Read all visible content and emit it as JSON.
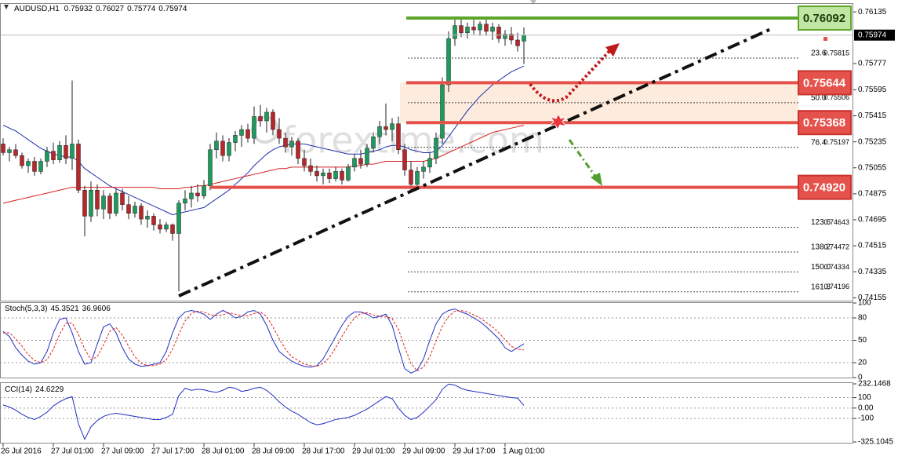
{
  "chart_data": [
    {
      "type": "candlestick",
      "symbol": "AUDUSD,H1",
      "watermark": "forextime.com",
      "categories": [
        "26 Jul 2016",
        null,
        null,
        null,
        null,
        null,
        null,
        null,
        "27 Jul 01:00",
        null,
        null,
        null,
        null,
        null,
        null,
        null,
        "27 Jul 09:00",
        null,
        null,
        null,
        null,
        null,
        null,
        null,
        "27 Jul 17:00",
        null,
        null,
        null,
        null,
        null,
        null,
        null,
        "28 Jul 01:00",
        null,
        null,
        null,
        null,
        null,
        null,
        null,
        "28 Jul 09:00",
        null,
        null,
        null,
        null,
        null,
        null,
        null,
        "28 Jul 17:00",
        null,
        null,
        null,
        null,
        null,
        null,
        null,
        "29 Jul 01:00",
        null,
        null,
        null,
        null,
        null,
        null,
        null,
        "29 Jul 09:00",
        null,
        null,
        null,
        null,
        null,
        null,
        null,
        "29 Jul 17:00",
        null,
        null,
        null,
        null,
        null,
        null,
        null,
        "1 Aug 01:00",
        null,
        null,
        null
      ],
      "candles": [
        [
          0.7522,
          0.7526,
          0.7514,
          0.7516
        ],
        [
          0.7516,
          0.752,
          0.751,
          0.7518
        ],
        [
          0.7518,
          0.7522,
          0.7512,
          0.7514
        ],
        [
          0.7514,
          0.7516,
          0.7505,
          0.7507
        ],
        [
          0.7507,
          0.7512,
          0.7502,
          0.751
        ],
        [
          0.751,
          0.7513,
          0.75,
          0.7503
        ],
        [
          0.7503,
          0.7512,
          0.7501,
          0.751
        ],
        [
          0.751,
          0.752,
          0.7506,
          0.7517
        ],
        [
          0.7517,
          0.7523,
          0.7508,
          0.7511
        ],
        [
          0.7511,
          0.7524,
          0.7509,
          0.7521
        ],
        [
          0.7521,
          0.7528,
          0.7508,
          0.7512
        ],
        [
          0.7512,
          0.7566,
          0.7504,
          0.7522
        ],
        [
          0.7522,
          0.7525,
          0.7488,
          0.749
        ],
        [
          0.749,
          0.7493,
          0.7458,
          0.7472
        ],
        [
          0.7472,
          0.7496,
          0.7468,
          0.749
        ],
        [
          0.749,
          0.7494,
          0.7472,
          0.7477
        ],
        [
          0.7477,
          0.749,
          0.747,
          0.7486
        ],
        [
          0.7486,
          0.7488,
          0.747,
          0.7474
        ],
        [
          0.7474,
          0.7491,
          0.7472,
          0.7488
        ],
        [
          0.7488,
          0.7491,
          0.7476,
          0.748
        ],
        [
          0.748,
          0.7486,
          0.747,
          0.7474
        ],
        [
          0.7474,
          0.7482,
          0.7471,
          0.7479
        ],
        [
          0.7479,
          0.7481,
          0.7466,
          0.747
        ],
        [
          0.747,
          0.7476,
          0.7464,
          0.7472
        ],
        [
          0.7472,
          0.7474,
          0.7462,
          0.7466
        ],
        [
          0.7466,
          0.747,
          0.746,
          0.7463
        ],
        [
          0.7463,
          0.7468,
          0.7461,
          0.7466
        ],
        [
          0.7466,
          0.7467,
          0.7455,
          0.746
        ],
        [
          0.746,
          0.7483,
          0.742,
          0.7481
        ],
        [
          0.7481,
          0.749,
          0.7476,
          0.7484
        ],
        [
          0.7484,
          0.7493,
          0.7478,
          0.7488
        ],
        [
          0.7488,
          0.7494,
          0.7482,
          0.7486
        ],
        [
          0.7486,
          0.7497,
          0.7484,
          0.7493
        ],
        [
          0.7493,
          0.7522,
          0.749,
          0.7518
        ],
        [
          0.7518,
          0.753,
          0.7512,
          0.7524
        ],
        [
          0.7524,
          0.7528,
          0.751,
          0.7514
        ],
        [
          0.7514,
          0.7526,
          0.751,
          0.7523
        ],
        [
          0.7523,
          0.7531,
          0.7517,
          0.7528
        ],
        [
          0.7528,
          0.7535,
          0.752,
          0.7532
        ],
        [
          0.7532,
          0.7536,
          0.7523,
          0.7526
        ],
        [
          0.7526,
          0.7548,
          0.7522,
          0.7541
        ],
        [
          0.7541,
          0.7549,
          0.7534,
          0.7538
        ],
        [
          0.7538,
          0.7547,
          0.753,
          0.7544
        ],
        [
          0.7544,
          0.7546,
          0.7528,
          0.7532
        ],
        [
          0.7532,
          0.754,
          0.7522,
          0.7526
        ],
        [
          0.7526,
          0.753,
          0.7516,
          0.752
        ],
        [
          0.752,
          0.7527,
          0.7514,
          0.7524
        ],
        [
          0.7524,
          0.7526,
          0.7508,
          0.7512
        ],
        [
          0.7512,
          0.7518,
          0.7503,
          0.7507
        ],
        [
          0.7507,
          0.7512,
          0.75,
          0.7503
        ],
        [
          0.7503,
          0.7507,
          0.7496,
          0.75
        ],
        [
          0.75,
          0.7505,
          0.7494,
          0.7502
        ],
        [
          0.7502,
          0.7505,
          0.7495,
          0.7498
        ],
        [
          0.7498,
          0.7506,
          0.7496,
          0.7503
        ],
        [
          0.7503,
          0.7505,
          0.7494,
          0.7497
        ],
        [
          0.7497,
          0.7508,
          0.7496,
          0.7506
        ],
        [
          0.7506,
          0.7515,
          0.7503,
          0.7512
        ],
        [
          0.7512,
          0.7518,
          0.7505,
          0.7508
        ],
        [
          0.7508,
          0.7522,
          0.7506,
          0.7519
        ],
        [
          0.7519,
          0.753,
          0.7516,
          0.7527
        ],
        [
          0.7527,
          0.7538,
          0.7522,
          0.7534
        ],
        [
          0.7534,
          0.755,
          0.7528,
          0.7532
        ],
        [
          0.7532,
          0.754,
          0.7524,
          0.7536
        ],
        [
          0.7536,
          0.7541,
          0.7515,
          0.7518
        ],
        [
          0.7518,
          0.7522,
          0.75,
          0.7504
        ],
        [
          0.7504,
          0.751,
          0.749,
          0.7494
        ],
        [
          0.7494,
          0.7506,
          0.7491,
          0.7503
        ],
        [
          0.7503,
          0.751,
          0.7498,
          0.7506
        ],
        [
          0.7506,
          0.7516,
          0.7502,
          0.7512
        ],
        [
          0.7512,
          0.753,
          0.7508,
          0.7526
        ],
        [
          0.7526,
          0.7568,
          0.7522,
          0.7563
        ],
        [
          0.7563,
          0.76,
          0.7558,
          0.7595
        ],
        [
          0.7595,
          0.7609,
          0.759,
          0.7604
        ],
        [
          0.7604,
          0.7609,
          0.7596,
          0.7599
        ],
        [
          0.7599,
          0.7606,
          0.7595,
          0.7603
        ],
        [
          0.7603,
          0.7608,
          0.7598,
          0.7601
        ],
        [
          0.7601,
          0.7607,
          0.7597,
          0.7605
        ],
        [
          0.7605,
          0.7609,
          0.7597,
          0.76
        ],
        [
          0.76,
          0.7606,
          0.7594,
          0.7603
        ],
        [
          0.7603,
          0.7605,
          0.7592,
          0.7595
        ],
        [
          0.7595,
          0.7601,
          0.759,
          0.7598
        ],
        [
          0.7598,
          0.7603,
          0.7591,
          0.7594
        ],
        [
          0.7594,
          0.7599,
          0.7586,
          0.759
        ],
        [
          0.75932,
          0.76027,
          0.75774,
          0.75974
        ]
      ],
      "up_color": "#1f9a5e",
      "down_color": "#b8262a",
      "ylim": [
        0.74135,
        0.7619
      ],
      "yticks": [
        0.76135,
        0.75777,
        0.75595,
        0.75415,
        0.75235,
        0.75055,
        0.74875,
        0.74695,
        0.74515,
        0.74335,
        0.74155
      ],
      "series": [
        {
          "color": "#1f2fa8",
          "values": [
            0.7535,
            0.7533,
            0.7531,
            0.7528,
            0.7525,
            0.7522,
            0.7519,
            0.7517,
            0.7515,
            0.7514,
            0.7513,
            0.7513,
            0.751,
            0.7505,
            0.7502,
            0.7499,
            0.7496,
            0.7493,
            0.7491,
            0.7489,
            0.7487,
            0.7485,
            0.7483,
            0.7481,
            0.7479,
            0.7477,
            0.7475,
            0.7473,
            0.7474,
            0.7475,
            0.7476,
            0.7477,
            0.7478,
            0.7481,
            0.7484,
            0.7487,
            0.749,
            0.7494,
            0.7498,
            0.7502,
            0.7507,
            0.7511,
            0.7515,
            0.7518,
            0.752,
            0.7521,
            0.7522,
            0.7522,
            0.7522,
            0.7521,
            0.752,
            0.7519,
            0.7518,
            0.7517,
            0.7516,
            0.7515,
            0.7515,
            0.7515,
            0.7516,
            0.7517,
            0.7518,
            0.752,
            0.7521,
            0.7521,
            0.752,
            0.7518,
            0.7517,
            0.7516,
            0.7516,
            0.7517,
            0.7521,
            0.7527,
            0.7533,
            0.7539,
            0.7545,
            0.755,
            0.7555,
            0.7559,
            0.7563,
            0.7566,
            0.7569,
            0.7572,
            0.7574,
            0.7576
          ]
        },
        {
          "color": "#d42020",
          "values": [
            0.7481,
            0.7482,
            0.7483,
            0.7484,
            0.7485,
            0.7486,
            0.7487,
            0.7488,
            0.7489,
            0.749,
            0.7491,
            0.7492,
            0.7492,
            0.7492,
            0.7492,
            0.7492,
            0.7492,
            0.7492,
            0.7492,
            0.7492,
            0.7492,
            0.7492,
            0.7492,
            0.7492,
            0.7492,
            0.7491,
            0.7491,
            0.7491,
            0.7491,
            0.7492,
            0.7492,
            0.7493,
            0.7493,
            0.7494,
            0.7495,
            0.7496,
            0.7497,
            0.7498,
            0.7499,
            0.75,
            0.7501,
            0.7502,
            0.7503,
            0.7504,
            0.7505,
            0.7505,
            0.7506,
            0.7506,
            0.7506,
            0.7506,
            0.7506,
            0.7506,
            0.7506,
            0.7506,
            0.7506,
            0.7506,
            0.7507,
            0.7507,
            0.7508,
            0.7508,
            0.7509,
            0.751,
            0.751,
            0.751,
            0.751,
            0.751,
            0.751,
            0.751,
            0.7511,
            0.7512,
            0.7514,
            0.7516,
            0.7518,
            0.752,
            0.7522,
            0.7524,
            0.7526,
            0.7528,
            0.753,
            0.7531,
            0.7532,
            0.7533,
            0.7534,
            0.7535
          ]
        }
      ],
      "levels": [
        {
          "value": 0.76092,
          "color": "#5fa52c"
        },
        {
          "value": 0.75644,
          "color": "#e5524b"
        },
        {
          "value": 0.75368,
          "color": "#e5524b"
        },
        {
          "value": 0.7492,
          "label": "0.74920",
          "color": "#e5524b"
        }
      ],
      "fib": [
        {
          "level": 23.6,
          "value": 0.75815
        },
        {
          "level": {
            "value": 50,
            "label": "50.0"
          },
          "value": 0.75506
        },
        {
          "level": 76.4,
          "value": 0.75197
        },
        {
          "level": 123.6,
          "value": 0.74643
        },
        {
          "level": 138.2,
          "value": 0.74472
        },
        {
          "level": {
            "value": 150,
            "label": "150.0"
          },
          "value": 0.74334
        },
        {
          "level": 161.8,
          "value": 0.74196
        }
      ]
    },
    {
      "type": "line",
      "title": "Stoch(5,3,3)",
      "ylim": [
        0,
        100
      ],
      "yticks": [
        100,
        80,
        50,
        20,
        0
      ],
      "series": [
        {
          "color": "#1f2fc0",
          "values": [
            62,
            55,
            40,
            30,
            22,
            18,
            20,
            35,
            60,
            78,
            80,
            60,
            35,
            18,
            20,
            45,
            68,
            72,
            60,
            40,
            25,
            18,
            15,
            16,
            18,
            20,
            35,
            60,
            80,
            88,
            90,
            88,
            85,
            78,
            85,
            90,
            86,
            80,
            82,
            88,
            90,
            85,
            70,
            50,
            35,
            28,
            22,
            18,
            15,
            14,
            16,
            25,
            40,
            55,
            70,
            82,
            88,
            88,
            85,
            80,
            82,
            85,
            70,
            40,
            12,
            6,
            10,
            25,
            50,
            72,
            85,
            90,
            92,
            88,
            85,
            80,
            75,
            68,
            60,
            52,
            40,
            35,
            40,
            45.3521
          ]
        },
        {
          "color": "#e0201b",
          "dashed": true,
          "values": [
            60,
            60,
            52,
            42,
            31,
            23,
            20,
            24,
            38,
            58,
            73,
            73,
            58,
            38,
            24,
            28,
            44,
            62,
            67,
            57,
            42,
            28,
            19,
            16,
            16,
            18,
            24,
            38,
            58,
            76,
            86,
            89,
            88,
            84,
            83,
            84,
            87,
            85,
            83,
            83,
            86,
            88,
            82,
            68,
            52,
            38,
            28,
            23,
            18,
            16,
            15,
            19,
            27,
            40,
            55,
            69,
            80,
            86,
            87,
            84,
            82,
            82,
            79,
            65,
            41,
            19,
            9,
            14,
            28,
            49,
            69,
            82,
            89,
            90,
            88,
            84,
            80,
            74,
            68,
            60,
            51,
            42,
            38,
            36.9606
          ]
        }
      ]
    },
    {
      "type": "line",
      "title": "CCI(14)",
      "ylim": [
        -325.1045,
        232.1468
      ],
      "yticks": [
        232.1468,
        100,
        {
          "value": 0,
          "label": "0.00"
        },
        -100,
        -325.1045
      ],
      "series": [
        {
          "color": "#1f2fc0",
          "values": [
            30,
            10,
            -20,
            -60,
            -90,
            -110,
            -80,
            -40,
            20,
            60,
            90,
            110,
            -150,
            -300,
            -180,
            -120,
            -80,
            -60,
            -50,
            -60,
            -70,
            -80,
            -90,
            -100,
            -110,
            -110,
            -90,
            -60,
            120,
            190,
            170,
            180,
            175,
            160,
            150,
            170,
            200,
            190,
            160,
            170,
            190,
            200,
            170,
            120,
            60,
            10,
            -30,
            -60,
            -100,
            -140,
            -160,
            -150,
            -130,
            -110,
            -100,
            -90,
            -70,
            -40,
            -10,
            30,
            70,
            110,
            90,
            0,
            -70,
            -110,
            -90,
            -40,
            20,
            80,
            180,
            230,
            220,
            190,
            170,
            160,
            150,
            140,
            130,
            120,
            110,
            100,
            95,
            24.6229
          ]
        }
      ]
    }
  ]
}
